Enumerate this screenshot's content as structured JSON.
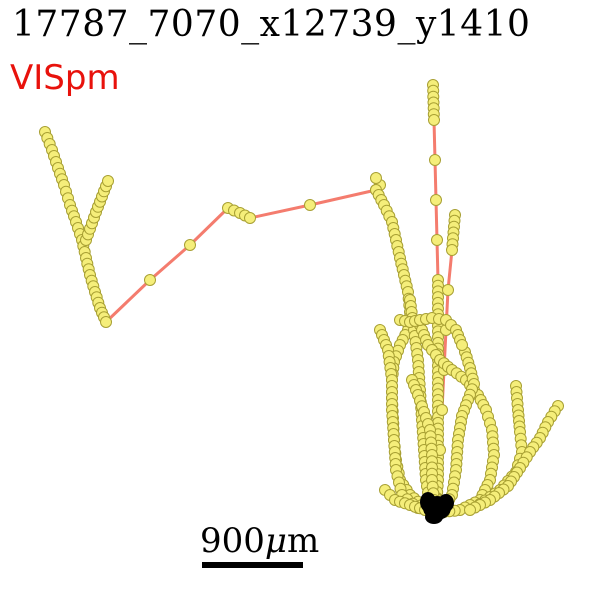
{
  "title": "17787_7070_x12739_y1410",
  "region": "VISpm",
  "scale_bar": {
    "value": "900",
    "unit": "μm"
  },
  "colors": {
    "line": "#f47c6e",
    "node_fill": "#f5ee7a",
    "node_stroke": "#a8a033",
    "soma": "#000000",
    "region_text": "#e8120c"
  }
}
